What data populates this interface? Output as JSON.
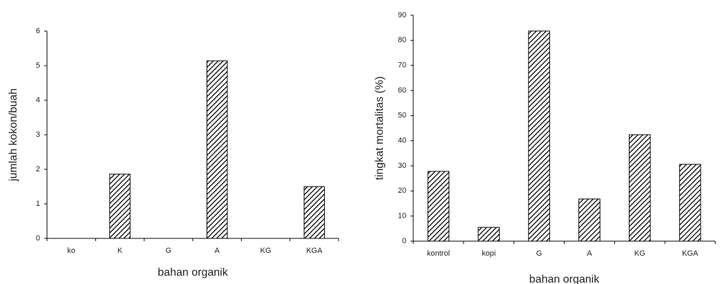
{
  "chart_data": [
    {
      "type": "bar",
      "x_label": "bahan organik",
      "y_label": "jumlah kokon/buah",
      "categories": [
        "ko",
        "K",
        "G",
        "A",
        "KG",
        "KGA"
      ],
      "values": [
        0,
        1.86,
        0,
        5.14,
        0,
        1.5
      ],
      "ylim": [
        0,
        6
      ],
      "yticks": [
        0,
        1,
        2,
        3,
        4,
        5,
        6
      ]
    },
    {
      "type": "bar",
      "x_label": "bahan organik",
      "y_label": "tingkat mortalitas (%)",
      "categories": [
        "kontrol",
        "kopi",
        "G",
        "A",
        "KG",
        "KGA"
      ],
      "values": [
        27.8,
        5.5,
        83.7,
        16.8,
        42.4,
        30.6
      ],
      "ylim": [
        0,
        90
      ],
      "yticks": [
        0,
        10,
        20,
        30,
        40,
        50,
        60,
        70,
        80,
        90
      ]
    }
  ]
}
